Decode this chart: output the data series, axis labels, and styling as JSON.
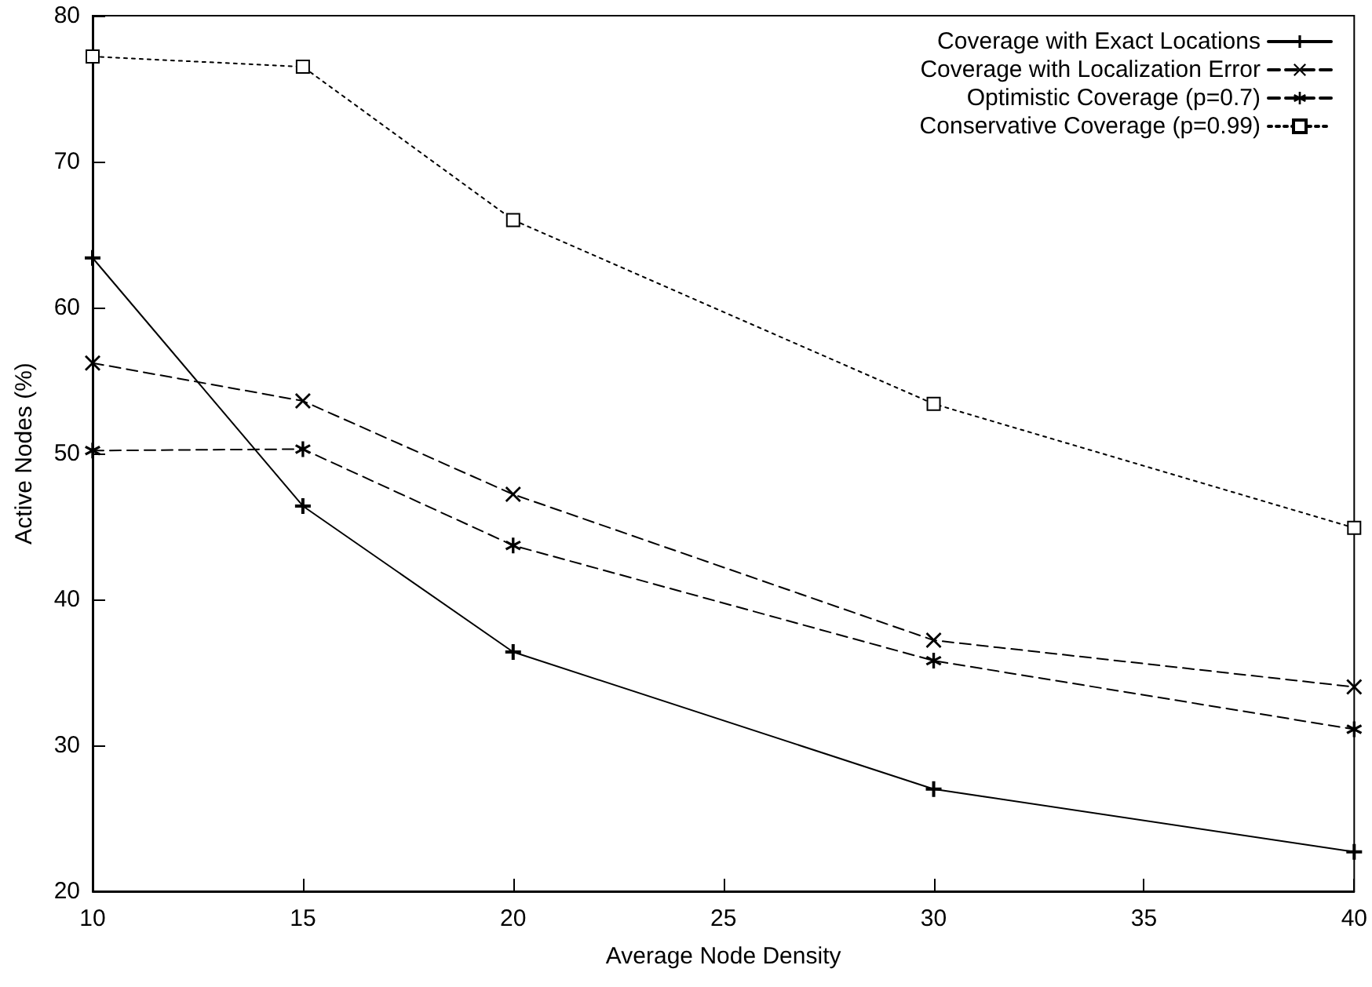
{
  "chart_data": {
    "type": "line",
    "xlabel": "Average Node Density",
    "ylabel": "Active Nodes (%)",
    "x": [
      10,
      15,
      20,
      30,
      40
    ],
    "series": [
      {
        "name": "Coverage with Exact Locations",
        "color": "#000000",
        "marker": "plus",
        "line_style": "solid",
        "values": [
          63.4,
          46.4,
          36.4,
          27.0,
          22.7
        ]
      },
      {
        "name": "Coverage with Localization Error",
        "color": "#000000",
        "marker": "cross",
        "line_style": "dashed",
        "values": [
          56.2,
          53.6,
          47.2,
          37.2,
          34.0
        ]
      },
      {
        "name": "Optimistic Coverage (p=0.7)",
        "color": "#000000",
        "marker": "star",
        "line_style": "dashed",
        "values": [
          50.2,
          50.3,
          43.7,
          35.8,
          31.1
        ]
      },
      {
        "name": "Conservative Coverage (p=0.99)",
        "color": "#000000",
        "marker": "square",
        "line_style": "dotted",
        "values": [
          77.2,
          76.5,
          66.0,
          53.4,
          44.9
        ]
      }
    ],
    "xlim": [
      10,
      40
    ],
    "xticks": [
      10,
      15,
      20,
      25,
      30,
      35,
      40
    ],
    "ylim": [
      20,
      80
    ],
    "yticks": [
      20,
      30,
      40,
      50,
      60,
      70,
      80
    ],
    "grid": false,
    "legend": "top right"
  }
}
